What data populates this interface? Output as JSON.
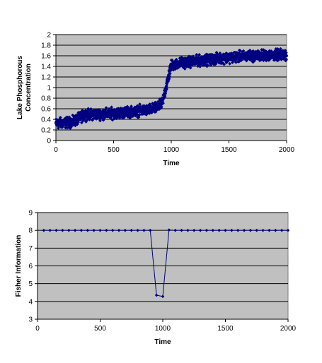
{
  "chart_data": [
    {
      "type": "scatter",
      "title": "",
      "xlabel": "Time",
      "ylabel_lines": [
        "Lake Phosphorous",
        "Concentration"
      ],
      "xlim": [
        0,
        2000
      ],
      "ylim": [
        0,
        2
      ],
      "x_ticks": [
        0,
        500,
        1000,
        1500,
        2000
      ],
      "y_ticks": [
        0,
        0.2,
        0.4,
        0.6,
        0.8,
        1,
        1.2,
        1.4,
        1.6,
        1.8,
        2
      ],
      "x_tick_labels": [
        "0",
        "500",
        "1000",
        "1500",
        "2000"
      ],
      "y_tick_labels": [
        "0",
        "0.2",
        "0.4",
        "0.6",
        "0.8",
        "1",
        "1.2",
        "1.4",
        "1.6",
        "1.8",
        "2"
      ],
      "grid": "horizontal",
      "plot_bg": "#c0c0c0",
      "marker_color": "#000080",
      "marker": "diamond",
      "series_trend": {
        "x": [
          0,
          150,
          200,
          250,
          400,
          600,
          800,
          880,
          920,
          960,
          1000,
          1100,
          1300,
          1500,
          1700,
          2000
        ],
        "y": [
          0.32,
          0.35,
          0.42,
          0.49,
          0.5,
          0.53,
          0.58,
          0.62,
          0.7,
          1.05,
          1.42,
          1.47,
          1.52,
          1.57,
          1.6,
          1.62
        ]
      },
      "noise_amplitude": 0.09,
      "point_count": 2000
    },
    {
      "type": "line",
      "title": "",
      "xlabel": "Time",
      "ylabel": "Fisher Information",
      "xlim": [
        0,
        2000
      ],
      "ylim": [
        3,
        9
      ],
      "x_ticks": [
        0,
        500,
        1000,
        1500,
        2000
      ],
      "y_ticks": [
        3,
        4,
        5,
        6,
        7,
        8,
        9
      ],
      "x_tick_labels": [
        "0",
        "500",
        "1000",
        "1500",
        "2000"
      ],
      "y_tick_labels": [
        "3",
        "4",
        "5",
        "6",
        "7",
        "8",
        "9"
      ],
      "grid": "horizontal",
      "plot_bg": "#c0c0c0",
      "line_color": "#000080",
      "marker": "diamond",
      "x": [
        50,
        100,
        150,
        200,
        250,
        300,
        350,
        400,
        450,
        500,
        550,
        600,
        650,
        700,
        750,
        800,
        850,
        900,
        950,
        1000,
        1050,
        1100,
        1150,
        1200,
        1250,
        1300,
        1350,
        1400,
        1450,
        1500,
        1550,
        1600,
        1650,
        1700,
        1750,
        1800,
        1850,
        1900,
        1950,
        2000
      ],
      "y": [
        8,
        8,
        8,
        8,
        8,
        8,
        8,
        8,
        8,
        8,
        8,
        8,
        8,
        8,
        8,
        8,
        8,
        8,
        4.35,
        4.28,
        8.02,
        8,
        8,
        8,
        8,
        8,
        8,
        8,
        8,
        8,
        8,
        8,
        8,
        8,
        8,
        8,
        8,
        8,
        8,
        8
      ]
    }
  ]
}
